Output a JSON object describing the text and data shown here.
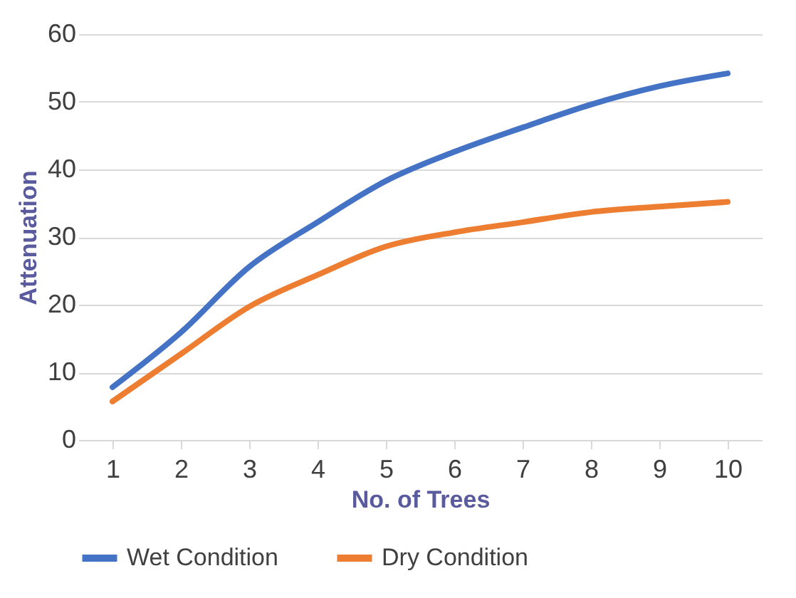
{
  "chart_data": {
    "type": "line",
    "xlabel": "No. of Trees",
    "ylabel": "Attenuation",
    "categories": [
      "1",
      "2",
      "3",
      "4",
      "5",
      "6",
      "7",
      "8",
      "9",
      "10"
    ],
    "series": [
      {
        "name": "Wet Condition",
        "color": "#4472c4",
        "values": [
          7.8,
          15.9,
          25.6,
          32.2,
          38.3,
          42.6,
          46.2,
          49.6,
          52.3,
          54.2
        ]
      },
      {
        "name": "Dry Condition",
        "color": "#ed7d31",
        "values": [
          5.7,
          12.7,
          19.7,
          24.4,
          28.6,
          30.7,
          32.2,
          33.7,
          34.5,
          35.2
        ]
      }
    ],
    "ylim": [
      0,
      60
    ],
    "yticks": [
      0,
      10,
      20,
      30,
      40,
      50,
      60
    ],
    "grid": "y",
    "legend": "bottom",
    "marker": "none",
    "line_style": "solid"
  }
}
